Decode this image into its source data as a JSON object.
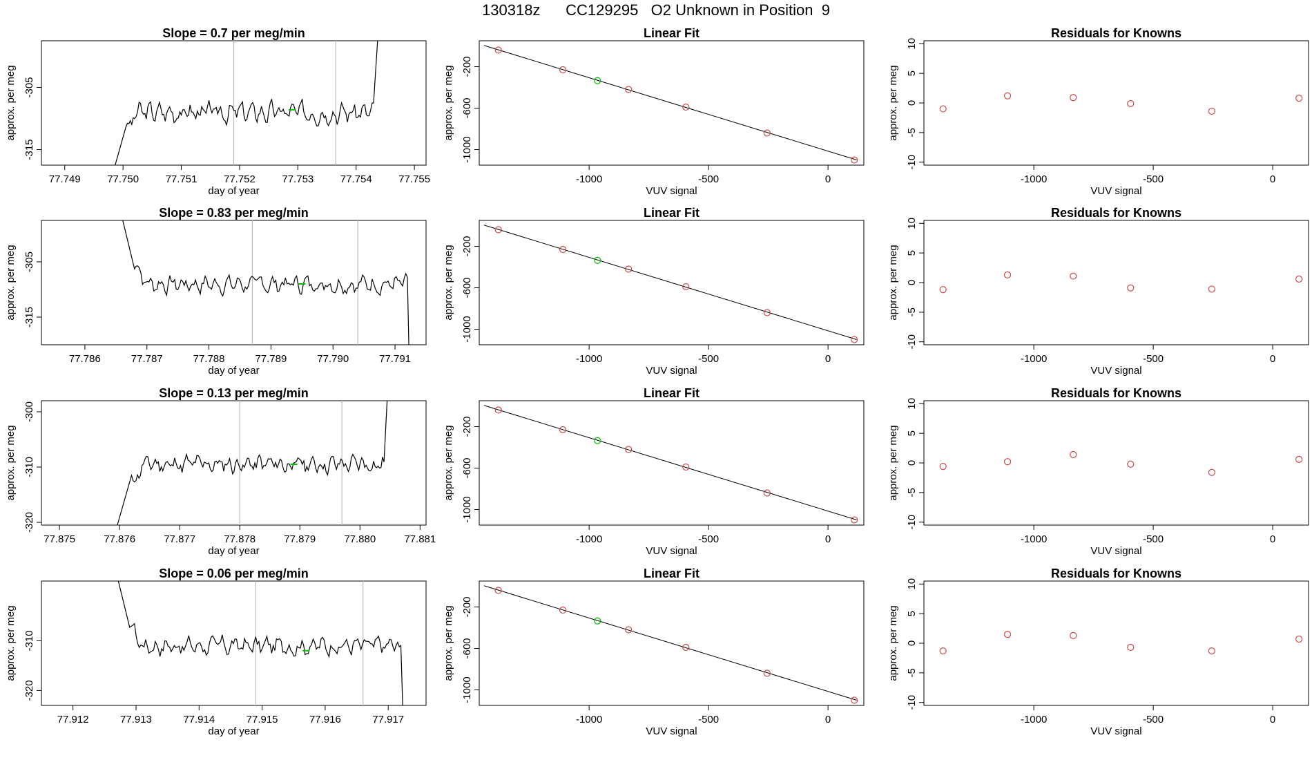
{
  "page": {
    "title": "130318z      CC129295   O2 Unknown in Position  9"
  },
  "chart_data": [
    {
      "type": "line",
      "title": "Slope =  0.7  per meg/min",
      "xlabel": "day of year",
      "ylabel": "approx. per meg",
      "xlim": [
        77.7486,
        77.7552
      ],
      "ylim": [
        -317.5,
        -297.5
      ],
      "xticks": [
        "77.749",
        "77.750",
        "77.751",
        "77.752",
        "77.753",
        "77.754",
        "77.755"
      ],
      "yticks": [
        "-305",
        "-315"
      ],
      "xtick_values": [
        77.749,
        77.75,
        77.751,
        77.752,
        77.753,
        77.754,
        77.755
      ],
      "ytick_values": [
        -305,
        -315
      ],
      "vlines": [
        77.7519,
        77.75365
      ],
      "base": -309,
      "amp": 1.9,
      "seed": 3,
      "x_start": 77.74985,
      "x_end": 77.7544,
      "level": -308.6,
      "level_x": 77.7529,
      "ends": {
        "start_x": 77.74985,
        "start_y": -318,
        "rise_x": 77.75005,
        "fall_x": 77.7543,
        "end_y": -297,
        "start_kind": "low",
        "end_kind": "high"
      },
      "line_color": "#000000",
      "vline_color": "#bdbdbd",
      "marker_color": "#00c000"
    },
    {
      "type": "scatter",
      "title": "Linear Fit",
      "xlabel": "VUV signal",
      "ylabel": "approx. per meg",
      "xlim": [
        -1460,
        150
      ],
      "ylim": [
        -1150,
        50
      ],
      "xticks": [
        "-1000",
        "-500",
        "0"
      ],
      "yticks": [
        "-200",
        "-600",
        "-1000"
      ],
      "xtick_values": [
        -1000,
        -500,
        0
      ],
      "ytick_values": [
        -200,
        -600,
        -1000
      ],
      "fit_line": {
        "x": [
          -1440,
          120
        ],
        "y": [
          5,
          -1100
        ]
      },
      "points_red": {
        "x": [
          -1380,
          -1110,
          -835,
          -595,
          -255,
          110
        ],
        "y": [
          -40,
          -230,
          -420,
          -590,
          -840,
          -1100
        ]
      },
      "points_green": {
        "x": [
          -965
        ],
        "y": [
          -335
        ]
      },
      "red_color": "#cd4a4a",
      "green_color": "#00c000"
    },
    {
      "type": "scatter",
      "title": "Residuals for Knowns",
      "xlabel": "VUV signal",
      "ylabel": "approx. per meg",
      "xlim": [
        -1460,
        150
      ],
      "ylim": [
        -10.5,
        10.5
      ],
      "xticks": [
        "-1000",
        "-500",
        "0"
      ],
      "yticks": [
        "10",
        "5",
        "0",
        "-5",
        "-10"
      ],
      "xtick_values": [
        -1000,
        -500,
        0
      ],
      "ytick_values": [
        10,
        5,
        0,
        -5,
        -10
      ],
      "points_red": {
        "x": [
          -1380,
          -1110,
          -835,
          -595,
          -255,
          110
        ],
        "y": [
          -1.0,
          1.2,
          0.9,
          -0.1,
          -1.4,
          0.8
        ]
      },
      "red_color": "#cd4a4a"
    },
    {
      "type": "line",
      "title": "Slope =  0.83  per meg/min",
      "xlabel": "day of year",
      "ylabel": "approx. per meg",
      "xlim": [
        77.7853,
        77.7915
      ],
      "ylim": [
        -320,
        -297.5
      ],
      "xticks": [
        "77.786",
        "77.787",
        "77.788",
        "77.789",
        "77.790",
        "77.791"
      ],
      "yticks": [
        "-305",
        "-315"
      ],
      "xtick_values": [
        77.786,
        77.787,
        77.788,
        77.789,
        77.79,
        77.791
      ],
      "ytick_values": [
        -305,
        -315
      ],
      "vlines": [
        77.7887,
        77.7904
      ],
      "base": -309,
      "amp": 1.9,
      "seed": 7,
      "x_start": 77.7866,
      "x_end": 77.79125,
      "level": -309,
      "level_x": 77.7895,
      "ends": {
        "start_x": 77.7866,
        "start_y": -297,
        "rise_x": 77.7868,
        "fall_x": 77.7912,
        "end_y": -321,
        "start_kind": "high",
        "end_kind": "low"
      },
      "line_color": "#000000",
      "vline_color": "#bdbdbd",
      "marker_color": "#00c000"
    },
    {
      "type": "scatter",
      "title": "Linear Fit",
      "xlabel": "VUV signal",
      "ylabel": "approx. per meg",
      "xlim": [
        -1460,
        150
      ],
      "ylim": [
        -1150,
        50
      ],
      "xticks": [
        "-1000",
        "-500",
        "0"
      ],
      "yticks": [
        "-200",
        "-600",
        "-1000"
      ],
      "xtick_values": [
        -1000,
        -500,
        0
      ],
      "ytick_values": [
        -200,
        -600,
        -1000
      ],
      "fit_line": {
        "x": [
          -1440,
          120
        ],
        "y": [
          5,
          -1100
        ]
      },
      "points_red": {
        "x": [
          -1380,
          -1110,
          -835,
          -595,
          -255,
          110
        ],
        "y": [
          -40,
          -230,
          -420,
          -590,
          -840,
          -1100
        ]
      },
      "points_green": {
        "x": [
          -965
        ],
        "y": [
          -335
        ]
      },
      "red_color": "#cd4a4a",
      "green_color": "#00c000"
    },
    {
      "type": "scatter",
      "title": "Residuals for Knowns",
      "xlabel": "VUV signal",
      "ylabel": "approx. per meg",
      "xlim": [
        -1460,
        150
      ],
      "ylim": [
        -10.5,
        10.5
      ],
      "xticks": [
        "-1000",
        "-500",
        "0"
      ],
      "yticks": [
        "10",
        "5",
        "0",
        "-5",
        "-10"
      ],
      "xtick_values": [
        -1000,
        -500,
        0
      ],
      "ytick_values": [
        10,
        5,
        0,
        -5,
        -10
      ],
      "points_red": {
        "x": [
          -1380,
          -1110,
          -835,
          -595,
          -255,
          110
        ],
        "y": [
          -1.2,
          1.3,
          1.1,
          -0.9,
          -1.1,
          0.6
        ]
      },
      "red_color": "#cd4a4a"
    },
    {
      "type": "line",
      "title": "Slope =  0.13  per meg/min",
      "xlabel": "day of year",
      "ylabel": "approx. per meg",
      "xlim": [
        77.8747,
        77.8811
      ],
      "ylim": [
        -320.5,
        -298
      ],
      "xticks": [
        "77.875",
        "77.876",
        "77.877",
        "77.878",
        "77.879",
        "77.880",
        "77.881"
      ],
      "yticks": [
        "-300",
        "-310",
        "-320"
      ],
      "xtick_values": [
        77.875,
        77.876,
        77.877,
        77.878,
        77.879,
        77.88,
        77.881
      ],
      "ytick_values": [
        -300,
        -310,
        -320
      ],
      "vlines": [
        77.878,
        77.8797
      ],
      "base": -309.5,
      "amp": 2.0,
      "seed": 11,
      "x_start": 77.87595,
      "x_end": 77.88055,
      "level": -309.5,
      "level_x": 77.8789,
      "ends": {
        "start_x": 77.87595,
        "start_y": -321,
        "rise_x": 77.8762,
        "fall_x": 77.8804,
        "end_y": -297,
        "start_kind": "low",
        "end_kind": "high"
      },
      "line_color": "#000000",
      "vline_color": "#bdbdbd",
      "marker_color": "#00c000"
    },
    {
      "type": "scatter",
      "title": "Linear Fit",
      "xlabel": "VUV signal",
      "ylabel": "approx. per meg",
      "xlim": [
        -1460,
        150
      ],
      "ylim": [
        -1150,
        50
      ],
      "xticks": [
        "-1000",
        "-500",
        "0"
      ],
      "yticks": [
        "-200",
        "-600",
        "-1000"
      ],
      "xtick_values": [
        -1000,
        -500,
        0
      ],
      "ytick_values": [
        -200,
        -600,
        -1000
      ],
      "fit_line": {
        "x": [
          -1440,
          120
        ],
        "y": [
          5,
          -1100
        ]
      },
      "points_red": {
        "x": [
          -1380,
          -1110,
          -835,
          -595,
          -255,
          110
        ],
        "y": [
          -40,
          -230,
          -420,
          -590,
          -840,
          -1100
        ]
      },
      "points_green": {
        "x": [
          -965
        ],
        "y": [
          -335
        ]
      },
      "red_color": "#cd4a4a",
      "green_color": "#00c000"
    },
    {
      "type": "scatter",
      "title": "Residuals for Knowns",
      "xlabel": "VUV signal",
      "ylabel": "approx. per meg",
      "xlim": [
        -1460,
        150
      ],
      "ylim": [
        -10.5,
        10.5
      ],
      "xticks": [
        "-1000",
        "-500",
        "0"
      ],
      "yticks": [
        "10",
        "5",
        "0",
        "-5",
        "-10"
      ],
      "xtick_values": [
        -1000,
        -500,
        0
      ],
      "ytick_values": [
        10,
        5,
        0,
        -5,
        -10
      ],
      "points_red": {
        "x": [
          -1380,
          -1110,
          -835,
          -595,
          -255,
          110
        ],
        "y": [
          -0.6,
          0.2,
          1.4,
          -0.2,
          -1.6,
          0.6
        ]
      },
      "red_color": "#cd4a4a"
    },
    {
      "type": "line",
      "title": "Slope =  0.06  per meg/min",
      "xlabel": "day of year",
      "ylabel": "approx. per meg",
      "xlim": [
        77.9115,
        77.9176
      ],
      "ylim": [
        -323,
        -298
      ],
      "xticks": [
        "77.912",
        "77.913",
        "77.914",
        "77.915",
        "77.916",
        "77.917"
      ],
      "yticks": [
        "-310",
        "-320"
      ],
      "xtick_values": [
        77.912,
        77.913,
        77.914,
        77.915,
        77.916,
        77.917
      ],
      "ytick_values": [
        -310,
        -320
      ],
      "vlines": [
        77.9149,
        77.9166
      ],
      "base": -311,
      "amp": 2.2,
      "seed": 17,
      "x_start": 77.9127,
      "x_end": 77.91735,
      "level": -312,
      "level_x": 77.9157,
      "ends": {
        "start_x": 77.9127,
        "start_y": -297,
        "rise_x": 77.9129,
        "fall_x": 77.9172,
        "end_y": -324,
        "start_kind": "high",
        "end_kind": "low"
      },
      "line_color": "#000000",
      "vline_color": "#bdbdbd",
      "marker_color": "#00c000"
    },
    {
      "type": "scatter",
      "title": "Linear Fit",
      "xlabel": "VUV signal",
      "ylabel": "approx. per meg",
      "xlim": [
        -1460,
        150
      ],
      "ylim": [
        -1150,
        50
      ],
      "xticks": [
        "-1000",
        "-500",
        "0"
      ],
      "yticks": [
        "-200",
        "-600",
        "-1000"
      ],
      "xtick_values": [
        -1000,
        -500,
        0
      ],
      "ytick_values": [
        -200,
        -600,
        -1000
      ],
      "fit_line": {
        "x": [
          -1440,
          120
        ],
        "y": [
          5,
          -1100
        ]
      },
      "points_red": {
        "x": [
          -1380,
          -1110,
          -835,
          -595,
          -255,
          110
        ],
        "y": [
          -40,
          -230,
          -420,
          -590,
          -840,
          -1100
        ]
      },
      "points_green": {
        "x": [
          -965
        ],
        "y": [
          -335
        ]
      },
      "red_color": "#cd4a4a",
      "green_color": "#00c000"
    },
    {
      "type": "scatter",
      "title": "Residuals for Knowns",
      "xlabel": "VUV signal",
      "ylabel": "approx. per meg",
      "xlim": [
        -1460,
        150
      ],
      "ylim": [
        -10.5,
        10.5
      ],
      "xticks": [
        "-1000",
        "-500",
        "0"
      ],
      "yticks": [
        "10",
        "5",
        "0",
        "-5",
        "-10"
      ],
      "xtick_values": [
        -1000,
        -500,
        0
      ],
      "ytick_values": [
        10,
        5,
        0,
        -5,
        -10
      ],
      "points_red": {
        "x": [
          -1380,
          -1110,
          -835,
          -595,
          -255,
          110
        ],
        "y": [
          -1.3,
          1.5,
          1.3,
          -0.7,
          -1.3,
          0.7
        ]
      },
      "red_color": "#cd4a4a"
    }
  ]
}
